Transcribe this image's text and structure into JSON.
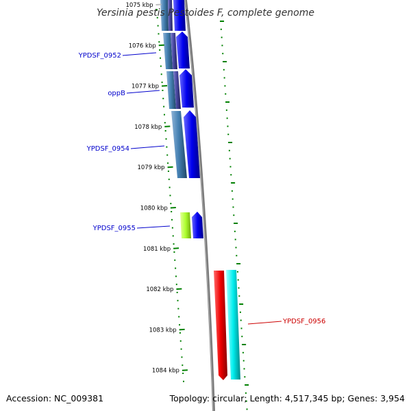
{
  "title": "Yersinia pestis Pestoides F, complete genome",
  "footer": {
    "accession": "Accession: NC_009381",
    "summary": "Topology: circular; Length: 4,517,345 bp; Genes: 3,954"
  },
  "ticks": [
    "1075 kbp",
    "1076 kbp",
    "1077 kbp",
    "1078 kbp",
    "1079 kbp",
    "1080 kbp",
    "1081 kbp",
    "1082 kbp",
    "1083 kbp",
    "1084 kbp"
  ],
  "gene_labels": [
    {
      "text": "YPDSF_0952",
      "color": "#0000cc"
    },
    {
      "text": "oppB",
      "color": "#0000cc"
    },
    {
      "text": "YPDSF_0954",
      "color": "#0000cc"
    },
    {
      "text": "YPDSF_0955",
      "color": "#0000cc"
    },
    {
      "text": "YPDSF_0956",
      "color": "#cc0000"
    }
  ],
  "colors": {
    "backbone": "#808080",
    "tick": "#008000",
    "forward_gene": "#0000ee",
    "steelblue_gene": "#4682b4",
    "green_gene": "#adff2f",
    "red_gene": "#ee0000",
    "cyan_gene": "#00eeee"
  }
}
